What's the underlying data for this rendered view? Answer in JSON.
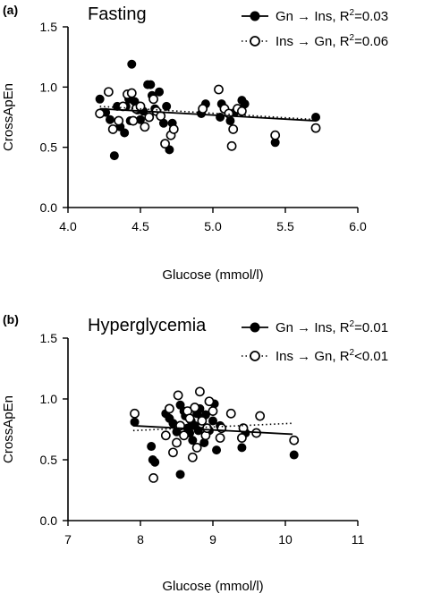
{
  "chart_data": [
    {
      "type": "scatter",
      "panel_label": "(a)",
      "title": "Fasting",
      "xlabel": "Glucose (mmol/l)",
      "ylabel": "CrossApEn",
      "xlim": [
        4.0,
        6.0
      ],
      "ylim": [
        0.0,
        1.5
      ],
      "xticks": [
        "4.0",
        "4.5",
        "5.0",
        "5.5",
        "6.0"
      ],
      "yticks": [
        "0.0",
        "0.5",
        "1.0",
        "1.5"
      ],
      "legend": "top-right",
      "series": [
        {
          "name": "Gn → Ins, R",
          "name_sup": "2",
          "name_tail": "=0.03",
          "marker": "filled",
          "line": "solid",
          "fit": [
            [
              4.22,
              0.82
            ],
            [
              5.71,
              0.72
            ]
          ],
          "points": [
            [
              4.22,
              0.9
            ],
            [
              4.26,
              0.79
            ],
            [
              4.29,
              0.73
            ],
            [
              4.32,
              0.43
            ],
            [
              4.34,
              0.84
            ],
            [
              4.36,
              0.67
            ],
            [
              4.39,
              0.62
            ],
            [
              4.4,
              0.84
            ],
            [
              4.42,
              0.9
            ],
            [
              4.43,
              0.72
            ],
            [
              4.44,
              1.19
            ],
            [
              4.46,
              0.88
            ],
            [
              4.48,
              0.81
            ],
            [
              4.5,
              0.73
            ],
            [
              4.52,
              0.8
            ],
            [
              4.55,
              1.02
            ],
            [
              4.57,
              1.02
            ],
            [
              4.58,
              0.93
            ],
            [
              4.6,
              0.82
            ],
            [
              4.63,
              0.96
            ],
            [
              4.66,
              0.7
            ],
            [
              4.68,
              0.84
            ],
            [
              4.7,
              0.48
            ],
            [
              4.72,
              0.7
            ],
            [
              4.92,
              0.78
            ],
            [
              4.95,
              0.86
            ],
            [
              5.05,
              0.75
            ],
            [
              5.06,
              0.86
            ],
            [
              5.12,
              0.72
            ],
            [
              5.15,
              0.79
            ],
            [
              5.2,
              0.89
            ],
            [
              5.22,
              0.86
            ],
            [
              5.43,
              0.54
            ],
            [
              5.71,
              0.75
            ]
          ]
        },
        {
          "name": "Ins → Gn, R",
          "name_sup": "2",
          "name_tail": "=0.06",
          "marker": "open",
          "line": "dotted",
          "fit": [
            [
              4.22,
              0.84
            ],
            [
              5.71,
              0.73
            ]
          ],
          "points": [
            [
              4.22,
              0.78
            ],
            [
              4.28,
              0.96
            ],
            [
              4.31,
              0.65
            ],
            [
              4.35,
              0.72
            ],
            [
              4.38,
              0.84
            ],
            [
              4.41,
              0.94
            ],
            [
              4.44,
              0.95
            ],
            [
              4.45,
              0.72
            ],
            [
              4.47,
              0.82
            ],
            [
              4.5,
              0.84
            ],
            [
              4.53,
              0.67
            ],
            [
              4.56,
              0.75
            ],
            [
              4.59,
              0.9
            ],
            [
              4.61,
              0.8
            ],
            [
              4.64,
              0.76
            ],
            [
              4.67,
              0.53
            ],
            [
              4.71,
              0.6
            ],
            [
              4.73,
              0.65
            ],
            [
              4.93,
              0.82
            ],
            [
              5.04,
              0.98
            ],
            [
              5.08,
              0.82
            ],
            [
              5.11,
              0.78
            ],
            [
              5.13,
              0.51
            ],
            [
              5.14,
              0.65
            ],
            [
              5.17,
              0.82
            ],
            [
              5.2,
              0.8
            ],
            [
              5.43,
              0.6
            ],
            [
              5.71,
              0.66
            ]
          ]
        }
      ]
    },
    {
      "type": "scatter",
      "panel_label": "(b)",
      "title": "Hyperglycemia",
      "xlabel": "Glucose (mmol/l)",
      "ylabel": "CrossApEn",
      "xlim": [
        7,
        11
      ],
      "ylim": [
        0.0,
        1.5
      ],
      "xticks": [
        "7",
        "8",
        "9",
        "10",
        "11"
      ],
      "yticks": [
        "0.0",
        "0.5",
        "1.0",
        "1.5"
      ],
      "legend": "top-right",
      "series": [
        {
          "name": "Gn → Ins, R",
          "name_sup": "2",
          "name_tail": "=0.01",
          "marker": "filled",
          "line": "solid",
          "fit": [
            [
              7.9,
              0.78
            ],
            [
              10.1,
              0.71
            ]
          ],
          "points": [
            [
              7.92,
              0.81
            ],
            [
              8.15,
              0.61
            ],
            [
              8.17,
              0.5
            ],
            [
              8.2,
              0.48
            ],
            [
              8.35,
              0.88
            ],
            [
              8.4,
              0.84
            ],
            [
              8.45,
              0.8
            ],
            [
              8.5,
              0.73
            ],
            [
              8.55,
              0.95
            ],
            [
              8.55,
              0.38
            ],
            [
              8.6,
              0.9
            ],
            [
              8.62,
              0.86
            ],
            [
              8.65,
              0.76
            ],
            [
              8.68,
              0.72
            ],
            [
              8.7,
              0.82
            ],
            [
              8.72,
              0.66
            ],
            [
              8.75,
              0.78
            ],
            [
              8.78,
              0.88
            ],
            [
              8.8,
              0.74
            ],
            [
              8.82,
              0.92
            ],
            [
              8.85,
              0.84
            ],
            [
              8.88,
              0.64
            ],
            [
              8.9,
              0.87
            ],
            [
              8.92,
              0.76
            ],
            [
              8.95,
              0.74
            ],
            [
              9.0,
              0.82
            ],
            [
              9.02,
              0.96
            ],
            [
              9.05,
              0.58
            ],
            [
              9.1,
              0.78
            ],
            [
              9.4,
              0.6
            ],
            [
              9.45,
              0.72
            ],
            [
              10.12,
              0.54
            ]
          ]
        },
        {
          "name": "Ins → Gn, R",
          "name_sup": "2",
          "name_tail": "<0.01",
          "marker": "open",
          "line": "dotted",
          "fit": [
            [
              7.9,
              0.74
            ],
            [
              10.1,
              0.8
            ]
          ],
          "points": [
            [
              7.92,
              0.88
            ],
            [
              8.18,
              0.35
            ],
            [
              8.35,
              0.7
            ],
            [
              8.4,
              0.92
            ],
            [
              8.45,
              0.56
            ],
            [
              8.5,
              0.64
            ],
            [
              8.52,
              1.03
            ],
            [
              8.55,
              0.78
            ],
            [
              8.6,
              0.7
            ],
            [
              8.65,
              0.9
            ],
            [
              8.68,
              0.84
            ],
            [
              8.72,
              0.52
            ],
            [
              8.75,
              0.93
            ],
            [
              8.78,
              0.6
            ],
            [
              8.82,
              1.06
            ],
            [
              8.85,
              0.82
            ],
            [
              8.9,
              0.7
            ],
            [
              8.92,
              0.76
            ],
            [
              8.95,
              0.98
            ],
            [
              9.0,
              0.9
            ],
            [
              9.1,
              0.68
            ],
            [
              9.12,
              0.76
            ],
            [
              9.25,
              0.88
            ],
            [
              9.4,
              0.68
            ],
            [
              9.42,
              0.76
            ],
            [
              9.6,
              0.72
            ],
            [
              9.65,
              0.86
            ],
            [
              10.12,
              0.66
            ]
          ]
        }
      ]
    }
  ]
}
